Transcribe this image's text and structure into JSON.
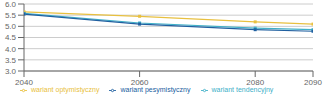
{
  "chart_data": {
    "type": "line",
    "x": [
      2040,
      2060,
      2080,
      2090
    ],
    "series": [
      {
        "name": "wariant optymistyczny",
        "color": "#e8c040",
        "values": [
          5.65,
          5.45,
          5.2,
          5.1
        ]
      },
      {
        "name": "wariant tendencyjny",
        "color": "#40b0c8",
        "values": [
          5.58,
          5.15,
          4.92,
          4.85
        ]
      },
      {
        "name": "wariant pesymistyczny",
        "color": "#2060a0",
        "values": [
          5.55,
          5.1,
          4.85,
          4.78
        ]
      }
    ],
    "xlim": [
      2040,
      2090
    ],
    "xticks": [
      2040,
      2060,
      2080,
      2090
    ],
    "ylim": [
      3,
      6
    ],
    "yticks": [
      {
        "value": 3,
        "label": "3.0"
      },
      3.5,
      {
        "value": 4,
        "label": "4.0"
      },
      4.5,
      {
        "value": 5,
        "label": "5.0"
      },
      5.5,
      {
        "value": 6,
        "label": "6.0"
      }
    ],
    "grid": true,
    "legend": "bottom",
    "marker": "square"
  }
}
